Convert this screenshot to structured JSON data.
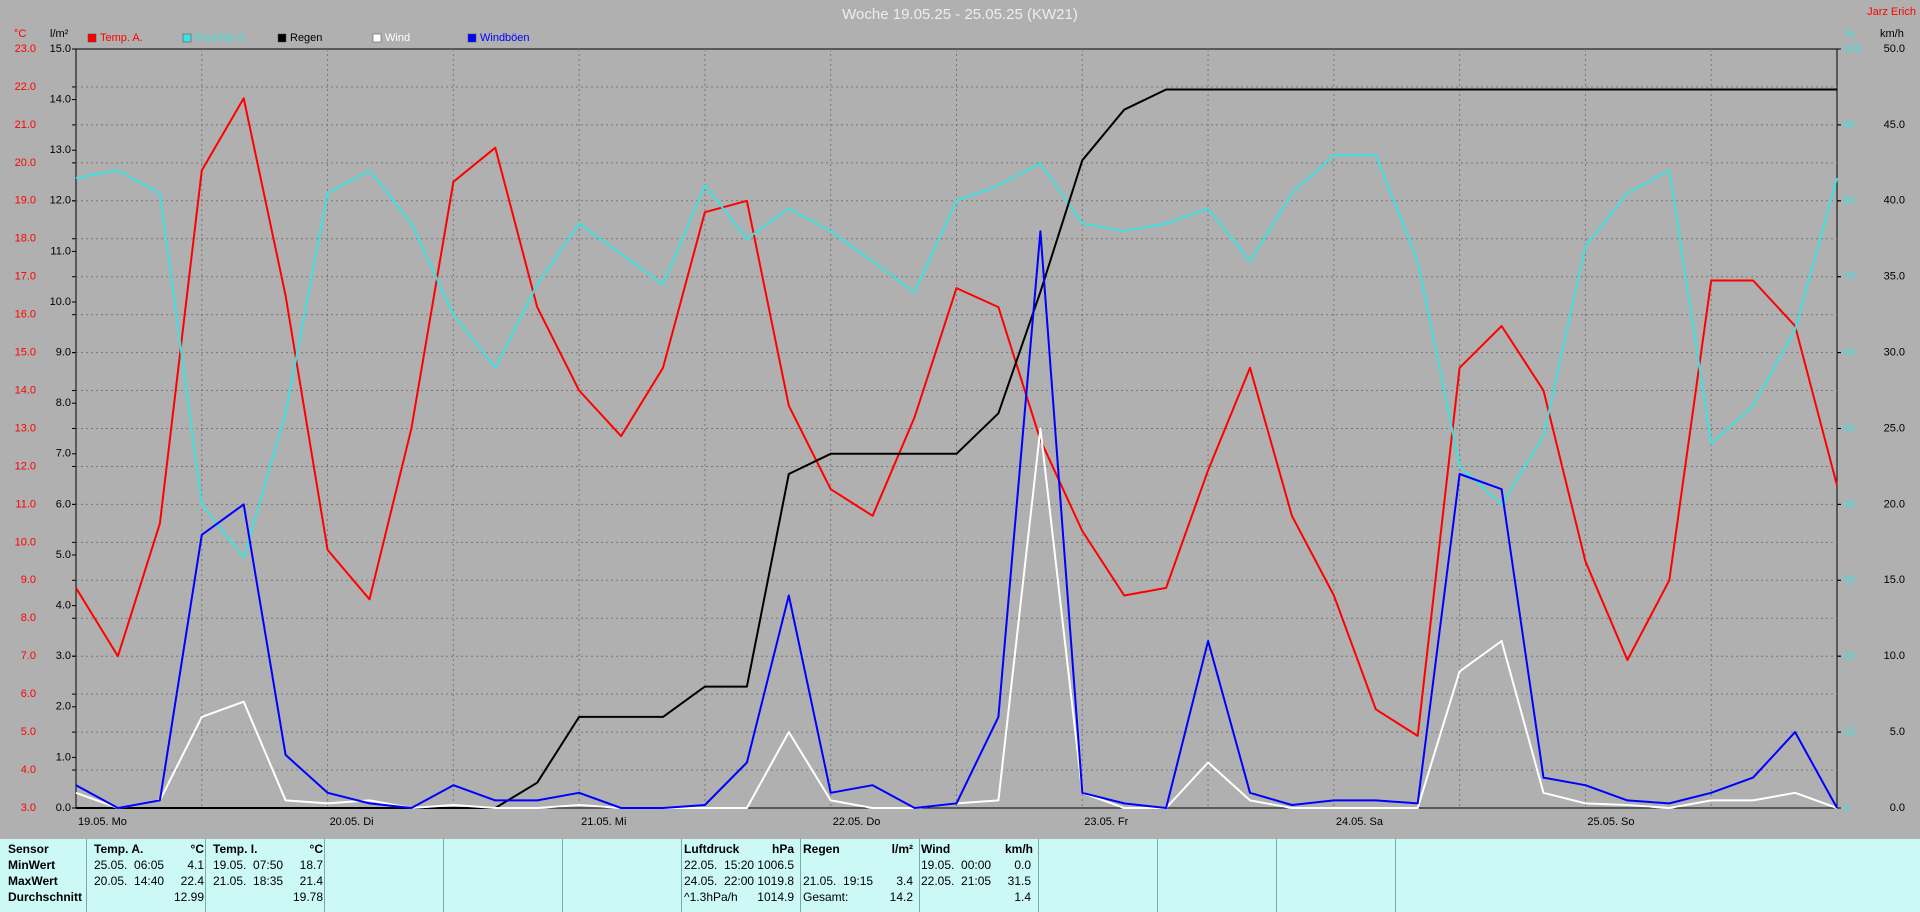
{
  "chart_data": {
    "type": "line",
    "title": "Woche 19.05.25 - 25.05.25 (KW21)",
    "author": "Jarz Erich",
    "ylabel": "°C",
    "y2label": "l/m²",
    "y3label": "%",
    "y4label": "km/h",
    "categories": [
      "19.05. Mo",
      null,
      null,
      null,
      null,
      null,
      "20.05. Di",
      null,
      null,
      null,
      null,
      null,
      "21.05. Mi",
      null,
      null,
      null,
      null,
      null,
      "22.05. Do",
      null,
      null,
      null,
      null,
      null,
      "23.05. Fr",
      null,
      null,
      null,
      null,
      null,
      "24.05. Sa",
      null,
      null,
      null,
      null,
      null,
      "25.05. So",
      null,
      null,
      null,
      null,
      null,
      null
    ],
    "ylim": [
      3,
      23
    ],
    "yticks": [
      {
        "value": 3,
        "label": "3.0"
      },
      {
        "value": 4,
        "label": "4.0"
      },
      {
        "value": 5,
        "label": "5.0"
      },
      {
        "value": 6,
        "label": "6.0"
      },
      {
        "value": 7,
        "label": "7.0"
      },
      {
        "value": 8,
        "label": "8.0"
      },
      {
        "value": 9,
        "label": "9.0"
      },
      {
        "value": 10,
        "label": "10.0"
      },
      {
        "value": 11,
        "label": "11.0"
      },
      {
        "value": 12,
        "label": "12.0"
      },
      {
        "value": 13,
        "label": "13.0"
      },
      {
        "value": 14,
        "label": "14.0"
      },
      {
        "value": 15,
        "label": "15.0"
      },
      {
        "value": 16,
        "label": "16.0"
      },
      {
        "value": 17,
        "label": "17.0"
      },
      {
        "value": 18,
        "label": "18.0"
      },
      {
        "value": 19,
        "label": "19.0"
      },
      {
        "value": 20,
        "label": "20.0"
      },
      {
        "value": 21,
        "label": "21.0"
      },
      {
        "value": 22,
        "label": "22.0"
      },
      {
        "value": 23,
        "label": "23.0"
      }
    ],
    "y2lim": [
      0,
      15
    ],
    "y2ticks": [
      {
        "value": 0,
        "label": "0.0"
      },
      {
        "value": 1,
        "label": "1.0"
      },
      {
        "value": 2,
        "label": "2.0"
      },
      {
        "value": 3,
        "label": "3.0"
      },
      {
        "value": 4,
        "label": "4.0"
      },
      {
        "value": 5,
        "label": "5.0"
      },
      {
        "value": 6,
        "label": "6.0"
      },
      {
        "value": 7,
        "label": "7.0"
      },
      {
        "value": 8,
        "label": "8.0"
      },
      {
        "value": 9,
        "label": "9.0"
      },
      {
        "value": 10,
        "label": "10.0"
      },
      {
        "value": 11,
        "label": "11.0"
      },
      {
        "value": 12,
        "label": "12.0"
      },
      {
        "value": 13,
        "label": "13.0"
      },
      {
        "value": 14,
        "label": "14.0"
      },
      {
        "value": 15,
        "label": "15.0"
      }
    ],
    "y3lim": [
      0,
      100
    ],
    "y3ticks": [
      0,
      10,
      20,
      30,
      40,
      50,
      60,
      70,
      80,
      90,
      100
    ],
    "y4lim": [
      0,
      50
    ],
    "y4ticks": [
      {
        "value": 0,
        "label": "0.0"
      },
      {
        "value": 5,
        "label": "5.0"
      },
      {
        "value": 10,
        "label": "10.0"
      },
      {
        "value": 15,
        "label": "15.0"
      },
      {
        "value": 20,
        "label": "20.0"
      },
      {
        "value": 25,
        "label": "25.0"
      },
      {
        "value": 30,
        "label": "30.0"
      },
      {
        "value": 35,
        "label": "35.0"
      },
      {
        "value": 40,
        "label": "40.0"
      },
      {
        "value": 45,
        "label": "45.0"
      },
      {
        "value": 50,
        "label": "50.0"
      }
    ],
    "grid": true,
    "series": [
      {
        "name": "Temp. A.",
        "color": "#ff0000",
        "axis": "y",
        "values": [
          8.8,
          7.0,
          10.5,
          19.8,
          21.7,
          16.5,
          9.8,
          8.5,
          13,
          19.5,
          20.4,
          16.2,
          14.0,
          12.8,
          14.6,
          18.7,
          19.0,
          13.6,
          11.4,
          10.7,
          13.3,
          16.7,
          16.2,
          12.7,
          10.3,
          8.6,
          8.8,
          11.9,
          14.6,
          10.7,
          8.6,
          5.6,
          4.9,
          14.6,
          15.7,
          14.0,
          9.5,
          6.9,
          9.0,
          16.9,
          16.9,
          15.7,
          11.5
        ]
      },
      {
        "name": "Feuchte A.",
        "color": "#40e0e0",
        "axis": "y3",
        "values": [
          83,
          84,
          81,
          40,
          33,
          52,
          81,
          84,
          77,
          65,
          58,
          69,
          77,
          73,
          69,
          82,
          75,
          79,
          76,
          72,
          68,
          80,
          82,
          85,
          77,
          76,
          77,
          79,
          72,
          81,
          86,
          86,
          72,
          45,
          40,
          49,
          74,
          81,
          84,
          48,
          53,
          63,
          83
        ]
      },
      {
        "name": "Regen",
        "color": "#000000",
        "axis": "y2",
        "values": [
          0,
          0,
          0,
          0,
          0,
          0,
          0,
          0,
          0,
          0,
          0,
          0.5,
          1.8,
          1.8,
          1.8,
          2.4,
          2.4,
          6.6,
          7.0,
          7.0,
          7.0,
          7.0,
          7.8,
          10.2,
          12.8,
          13.8,
          14.2,
          14.2,
          14.2,
          14.2,
          14.2,
          14.2,
          14.2,
          14.2,
          14.2,
          14.2,
          14.2,
          14.2,
          14.2,
          14.2,
          14.2,
          14.2,
          14.2
        ]
      },
      {
        "name": "Wind",
        "color": "#ffffff",
        "axis": "y4",
        "values": [
          1,
          0,
          0.5,
          6,
          7,
          0.5,
          0.3,
          0.5,
          0,
          0.2,
          0,
          0,
          0.2,
          0,
          0,
          0,
          0,
          5,
          0.5,
          0,
          0,
          0.3,
          0.5,
          25,
          1,
          0,
          0,
          3,
          0.5,
          0,
          0,
          0,
          0,
          9,
          11,
          1,
          0.3,
          0.2,
          0,
          0.5,
          0.5,
          1,
          0
        ]
      },
      {
        "name": "Windböen",
        "color": "#0000ff",
        "axis": "y4",
        "values": [
          1.5,
          0,
          0.5,
          18,
          20,
          3.5,
          1,
          0.3,
          0,
          1.5,
          0.5,
          0.5,
          1,
          0,
          0,
          0.2,
          3,
          14,
          1,
          1.5,
          0,
          0.3,
          6,
          38,
          1,
          0.3,
          0,
          11,
          1,
          0.2,
          0.5,
          0.5,
          0.3,
          22,
          21,
          2,
          1.5,
          0.5,
          0.3,
          1,
          2,
          5,
          0
        ]
      }
    ]
  },
  "stats": {
    "row_labels": [
      "Sensor",
      "MinWert",
      "MaxWert",
      "Durchschnitt"
    ],
    "columns": [
      {
        "name": "Temp. A.",
        "unit": "°C",
        "rows": [
          [
            "25.05.  06:05",
            "4.1"
          ],
          [
            "20.05.  14:40",
            "22.4"
          ],
          [
            null,
            "12.99"
          ]
        ]
      },
      {
        "name": "Temp. I.",
        "unit": "°C",
        "rows": [
          [
            "19.05.  07:50",
            "18.7"
          ],
          [
            "21.05.  18:35",
            "21.4"
          ],
          [
            null,
            "19.78"
          ]
        ]
      },
      {
        "name": "Luftdruck",
        "unit": "hPa",
        "rows": [
          [
            "22.05.  15:20",
            "1006.5"
          ],
          [
            "24.05.  22:00",
            "1019.8"
          ],
          [
            "^1.3hPa/h",
            "1014.9"
          ]
        ]
      },
      {
        "name": "Regen",
        "unit": "l/m²",
        "rows": [
          [
            null,
            null
          ],
          [
            "21.05.  19:15",
            "3.4"
          ],
          [
            "Gesamt:",
            "14.2"
          ]
        ]
      },
      {
        "name": "Wind",
        "unit": "km/h",
        "rows": [
          [
            "19.05.  00:00",
            "0.0"
          ],
          [
            "22.05.  21:05",
            "31.5"
          ],
          [
            null,
            "1.4"
          ]
        ]
      }
    ]
  }
}
